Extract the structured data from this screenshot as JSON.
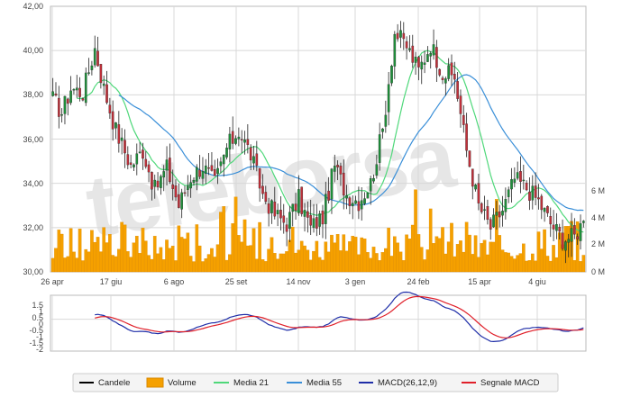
{
  "chart_data": {
    "type": "candlestick",
    "watermark": "teleborsa",
    "price_axis": {
      "ylim": [
        30,
        42
      ],
      "ticks": [
        "42,00",
        "40,00",
        "38,00",
        "36,00",
        "34,00",
        "32,00",
        "30,00"
      ]
    },
    "volume_axis": {
      "ylim": [
        0,
        6000000
      ],
      "ticks": [
        "6 M",
        "4 M",
        "2 M",
        "0 M"
      ]
    },
    "macd_axis": {
      "ylim": [
        -2,
        1.5
      ],
      "ticks": [
        "1.5",
        "1",
        "0.5",
        "0",
        "-0.5",
        "-1",
        "-1.5",
        "-2"
      ]
    },
    "x_ticks": [
      "26 apr",
      "17 giu",
      "6 ago",
      "25 set",
      "14 nov",
      "3 gen",
      "24 feb",
      "15 apr",
      "4 giu"
    ],
    "price_anchors": [
      {
        "i": 0,
        "v": 37.8
      },
      {
        "i": 3,
        "v": 37.2
      },
      {
        "i": 6,
        "v": 38.3
      },
      {
        "i": 10,
        "v": 38.1
      },
      {
        "i": 14,
        "v": 40.1
      },
      {
        "i": 17,
        "v": 38.3
      },
      {
        "i": 21,
        "v": 36.4
      },
      {
        "i": 26,
        "v": 34.8
      },
      {
        "i": 30,
        "v": 35.5
      },
      {
        "i": 34,
        "v": 33.7
      },
      {
        "i": 38,
        "v": 34.7
      },
      {
        "i": 42,
        "v": 33.0
      },
      {
        "i": 46,
        "v": 34.3
      },
      {
        "i": 50,
        "v": 34.8
      },
      {
        "i": 54,
        "v": 34.0
      },
      {
        "i": 58,
        "v": 35.6
      },
      {
        "i": 62,
        "v": 36.4
      },
      {
        "i": 66,
        "v": 35.3
      },
      {
        "i": 70,
        "v": 33.5
      },
      {
        "i": 74,
        "v": 32.6
      },
      {
        "i": 78,
        "v": 32.2
      },
      {
        "i": 82,
        "v": 33.3
      },
      {
        "i": 86,
        "v": 32.0
      },
      {
        "i": 90,
        "v": 32.5
      },
      {
        "i": 94,
        "v": 34.8
      },
      {
        "i": 98,
        "v": 33.5
      },
      {
        "i": 102,
        "v": 33.2
      },
      {
        "i": 106,
        "v": 34.0
      },
      {
        "i": 110,
        "v": 36.4
      },
      {
        "i": 114,
        "v": 40.8
      },
      {
        "i": 118,
        "v": 40.2
      },
      {
        "i": 122,
        "v": 39.1
      },
      {
        "i": 126,
        "v": 40.3
      },
      {
        "i": 130,
        "v": 39.0
      },
      {
        "i": 134,
        "v": 38.8
      },
      {
        "i": 138,
        "v": 35.5
      },
      {
        "i": 142,
        "v": 33.0
      },
      {
        "i": 146,
        "v": 32.0
      },
      {
        "i": 150,
        "v": 32.8
      },
      {
        "i": 154,
        "v": 34.2
      },
      {
        "i": 158,
        "v": 33.8
      },
      {
        "i": 162,
        "v": 33.2
      },
      {
        "i": 166,
        "v": 32.2
      },
      {
        "i": 170,
        "v": 31.5
      },
      {
        "i": 174,
        "v": 31.6
      },
      {
        "i": 177,
        "v": 32.3
      }
    ],
    "legend": [
      {
        "label": "Candele",
        "color": "#000000",
        "kind": "line"
      },
      {
        "label": "Volume",
        "color": "#f5a000",
        "kind": "box"
      },
      {
        "label": "Media 21",
        "color": "#4fd87a",
        "kind": "line"
      },
      {
        "label": "Media 55",
        "color": "#3a8fd8",
        "kind": "line"
      },
      {
        "label": "MACD(26,12,9)",
        "color": "#1f2ea8",
        "kind": "line"
      },
      {
        "label": "Segnale MACD",
        "color": "#e0202a",
        "kind": "line"
      }
    ],
    "colors": {
      "up": "#1e8f3a",
      "down": "#c0303a",
      "volume": "#f5a000",
      "volume_edge": "#d98800",
      "grid": "#d8d8d8",
      "frame": "#bbbbbb"
    }
  }
}
